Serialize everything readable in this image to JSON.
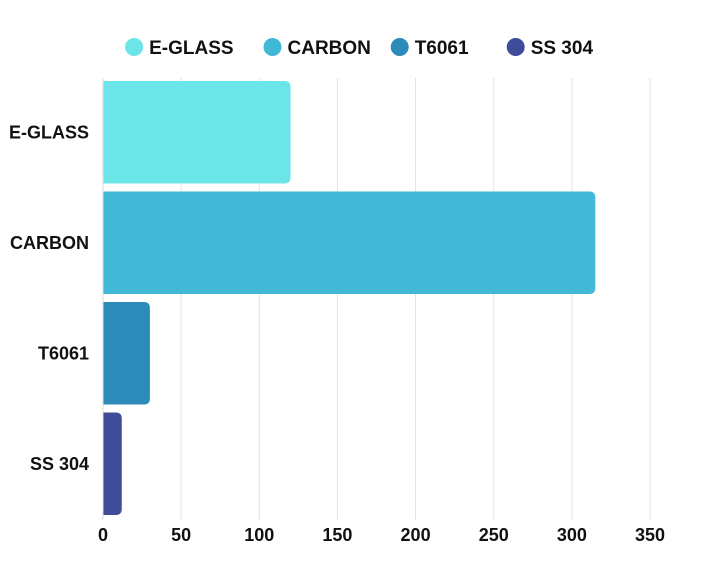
{
  "chart_data": {
    "type": "bar",
    "orientation": "horizontal",
    "categories": [
      "E-GLASS",
      "CARBON",
      "T6061",
      "SS 304"
    ],
    "values": [
      120,
      315,
      30,
      12
    ],
    "colors": [
      "#6ce5e8",
      "#41b8d5",
      "#2d8bba",
      "#3f4c99"
    ],
    "series": [
      {
        "name": "E-GLASS",
        "values": [
          120,
          null,
          null,
          null
        ]
      },
      {
        "name": "CARBON",
        "values": [
          null,
          315,
          null,
          null
        ]
      },
      {
        "name": "T6061",
        "values": [
          null,
          null,
          30,
          null
        ]
      },
      {
        "name": "SS 304",
        "values": [
          null,
          null,
          null,
          12
        ]
      }
    ],
    "xlim": [
      0,
      350
    ],
    "xticks": [
      0,
      50,
      100,
      150,
      200,
      250,
      300,
      350
    ],
    "grid": "vertical",
    "legend_position": "top",
    "legend_marker": "circle"
  }
}
